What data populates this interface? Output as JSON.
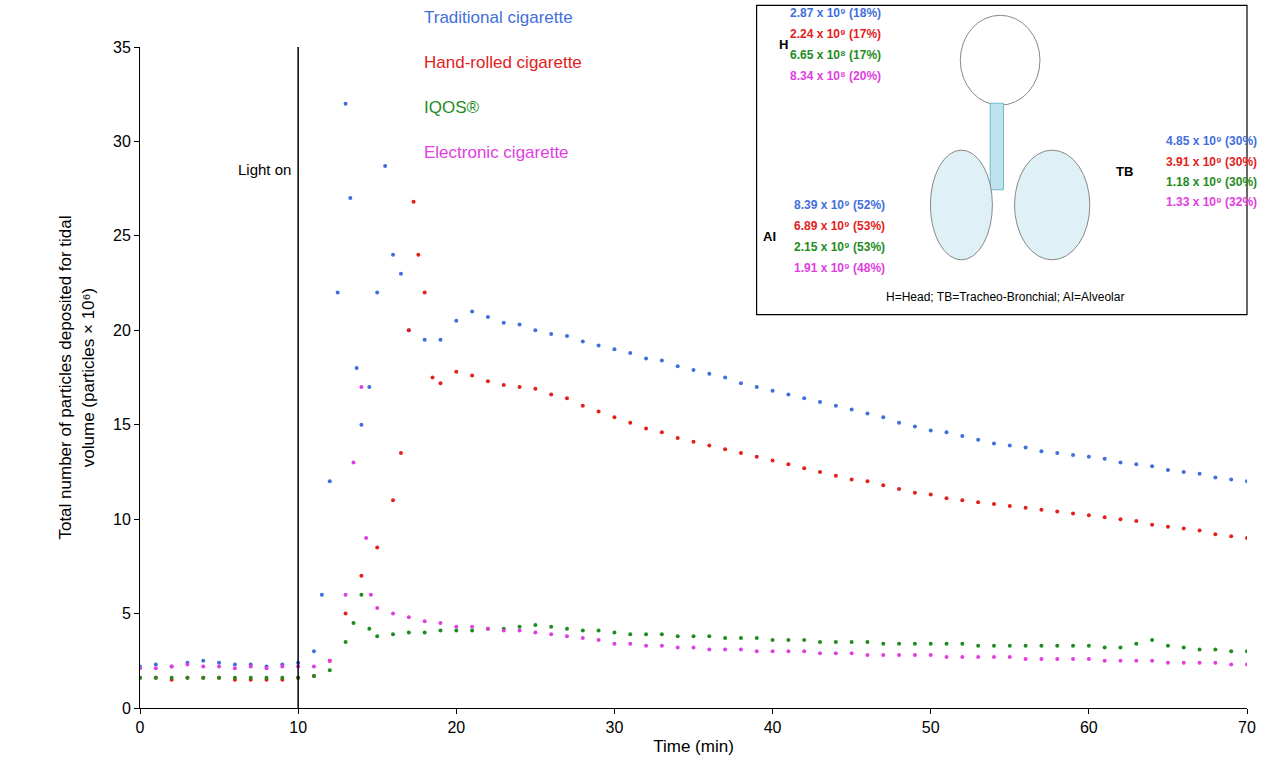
{
  "chart_data": {
    "type": "scatter",
    "x_label": "Time (min)",
    "y_label": "Total number of particles deposited for tidal volume (particles × 10⁶)",
    "xlim": [
      0,
      70
    ],
    "xticks": [
      0,
      10,
      20,
      30,
      40,
      50,
      60,
      70
    ],
    "ylim": [
      0,
      35
    ],
    "yticks": [
      0,
      5,
      10,
      15,
      20,
      25,
      30,
      35
    ],
    "grid": false,
    "legend": "top",
    "marker": "circle",
    "event": {
      "x": 10,
      "label": "Light on"
    },
    "series": [
      {
        "name": "Traditional cigarette",
        "color": "#3f6fdc",
        "x": [
          0,
          1,
          2,
          3,
          4,
          5,
          6,
          7,
          8,
          9,
          10,
          11,
          11.5,
          12,
          12.5,
          13,
          13.3,
          13.7,
          14,
          14.5,
          15,
          15.5,
          16,
          16.5,
          17,
          18,
          19,
          20,
          21,
          22,
          23,
          24,
          25,
          26,
          27,
          28,
          29,
          30,
          31,
          32,
          33,
          34,
          35,
          36,
          37,
          38,
          39,
          40,
          41,
          42,
          43,
          44,
          45,
          46,
          47,
          48,
          49,
          50,
          51,
          52,
          53,
          54,
          55,
          56,
          57,
          58,
          59,
          60,
          61,
          62,
          63,
          64,
          65,
          66,
          67,
          68,
          69,
          70
        ],
        "values": [
          2.2,
          2.3,
          2.2,
          2.4,
          2.5,
          2.4,
          2.3,
          2.3,
          2.2,
          2.3,
          2.4,
          3.0,
          6,
          12,
          22,
          32,
          27,
          18,
          15,
          17,
          22,
          28.7,
          24,
          23,
          20,
          19.5,
          19.5,
          20.5,
          21,
          20.7,
          20.4,
          20.3,
          20.0,
          19.8,
          19.7,
          19.4,
          19.2,
          19.0,
          18.8,
          18.5,
          18.4,
          18.1,
          17.9,
          17.7,
          17.5,
          17.2,
          17.0,
          16.8,
          16.6,
          16.4,
          16.2,
          16.0,
          15.8,
          15.6,
          15.4,
          15.1,
          14.9,
          14.7,
          14.6,
          14.4,
          14.2,
          14.0,
          13.9,
          13.8,
          13.6,
          13.5,
          13.4,
          13.3,
          13.2,
          13.0,
          12.9,
          12.8,
          12.6,
          12.5,
          12.4,
          12.2,
          12.1,
          12.0
        ]
      },
      {
        "name": "Hand-rolled cigarette",
        "color": "#e3211c",
        "x": [
          0,
          1,
          2,
          3,
          4,
          5,
          6,
          7,
          8,
          9,
          10,
          11,
          12,
          13,
          14,
          15,
          16,
          16.5,
          17,
          17.3,
          17.6,
          18,
          18.5,
          19,
          20,
          21,
          22,
          23,
          24,
          25,
          26,
          27,
          28,
          29,
          30,
          31,
          32,
          33,
          34,
          35,
          36,
          37,
          38,
          39,
          40,
          41,
          42,
          43,
          44,
          45,
          46,
          47,
          48,
          49,
          50,
          51,
          52,
          53,
          54,
          55,
          56,
          57,
          58,
          59,
          60,
          61,
          62,
          63,
          64,
          65,
          66,
          67,
          68,
          69,
          70
        ],
        "values": [
          1.6,
          1.6,
          1.5,
          1.6,
          1.6,
          1.6,
          1.5,
          1.5,
          1.5,
          1.5,
          1.6,
          1.7,
          2.5,
          5,
          7,
          8.5,
          11,
          13.5,
          20,
          26.8,
          24,
          22,
          17.5,
          17.2,
          17.8,
          17.6,
          17.3,
          17.1,
          17.0,
          16.9,
          16.6,
          16.4,
          16.0,
          15.7,
          15.4,
          15.1,
          14.8,
          14.6,
          14.3,
          14.1,
          13.9,
          13.7,
          13.5,
          13.3,
          13.1,
          12.9,
          12.7,
          12.5,
          12.3,
          12.1,
          12.0,
          11.8,
          11.6,
          11.4,
          11.3,
          11.1,
          11.0,
          10.9,
          10.8,
          10.7,
          10.6,
          10.5,
          10.4,
          10.3,
          10.2,
          10.1,
          10.0,
          9.9,
          9.7,
          9.6,
          9.5,
          9.4,
          9.2,
          9.1,
          9.0
        ]
      },
      {
        "name": "IQOS®",
        "color": "#1e8c1e",
        "x": [
          0,
          1,
          2,
          3,
          4,
          5,
          6,
          7,
          8,
          9,
          10,
          11,
          12,
          13,
          13.5,
          14,
          14.5,
          15,
          16,
          17,
          18,
          19,
          20,
          21,
          22,
          23,
          24,
          25,
          26,
          27,
          28,
          29,
          30,
          31,
          32,
          33,
          34,
          35,
          36,
          37,
          38,
          39,
          40,
          41,
          42,
          43,
          44,
          45,
          46,
          47,
          48,
          49,
          50,
          51,
          52,
          53,
          54,
          55,
          56,
          57,
          58,
          59,
          60,
          61,
          62,
          63,
          64,
          65,
          66,
          67,
          68,
          69,
          70
        ],
        "values": [
          1.6,
          1.6,
          1.6,
          1.6,
          1.6,
          1.6,
          1.6,
          1.6,
          1.6,
          1.6,
          1.6,
          1.7,
          2.0,
          3.5,
          4.5,
          6,
          4.2,
          3.8,
          3.9,
          4.0,
          4.0,
          4.1,
          4.1,
          4.1,
          4.2,
          4.2,
          4.3,
          4.4,
          4.3,
          4.2,
          4.1,
          4.1,
          4.0,
          3.9,
          3.9,
          3.9,
          3.8,
          3.8,
          3.8,
          3.7,
          3.7,
          3.7,
          3.6,
          3.6,
          3.6,
          3.5,
          3.5,
          3.5,
          3.5,
          3.4,
          3.4,
          3.4,
          3.4,
          3.4,
          3.4,
          3.3,
          3.3,
          3.3,
          3.3,
          3.3,
          3.3,
          3.3,
          3.3,
          3.2,
          3.2,
          3.4,
          3.6,
          3.3,
          3.2,
          3.1,
          3.1,
          3.0,
          3.0
        ]
      },
      {
        "name": "Electronic cigarette",
        "color": "#e03ee0",
        "x": [
          0,
          1,
          2,
          3,
          4,
          5,
          6,
          7,
          8,
          9,
          10,
          11,
          12,
          13,
          13.5,
          14,
          14.3,
          14.6,
          15,
          16,
          17,
          18,
          19,
          20,
          21,
          22,
          23,
          24,
          25,
          26,
          27,
          28,
          29,
          30,
          31,
          32,
          33,
          34,
          35,
          36,
          37,
          38,
          39,
          40,
          41,
          42,
          43,
          44,
          45,
          46,
          47,
          48,
          49,
          50,
          51,
          52,
          53,
          54,
          55,
          56,
          57,
          58,
          59,
          60,
          61,
          62,
          63,
          64,
          65,
          66,
          67,
          68,
          69,
          70
        ],
        "values": [
          2.1,
          2.1,
          2.2,
          2.3,
          2.2,
          2.2,
          2.1,
          2.2,
          2.1,
          2.2,
          2.2,
          2.2,
          2.5,
          6,
          13,
          17,
          9,
          6,
          5.3,
          5.0,
          4.8,
          4.6,
          4.5,
          4.3,
          4.3,
          4.2,
          4.1,
          4.1,
          4.0,
          3.9,
          3.8,
          3.7,
          3.6,
          3.4,
          3.4,
          3.3,
          3.3,
          3.2,
          3.2,
          3.1,
          3.1,
          3.1,
          3.0,
          3.0,
          3.0,
          3.0,
          2.9,
          2.9,
          2.9,
          2.8,
          2.8,
          2.8,
          2.8,
          2.8,
          2.7,
          2.7,
          2.7,
          2.7,
          2.7,
          2.6,
          2.6,
          2.6,
          2.6,
          2.6,
          2.5,
          2.5,
          2.5,
          2.5,
          2.4,
          2.4,
          2.4,
          2.4,
          2.3,
          2.3
        ]
      }
    ],
    "inset": {
      "regions": [
        {
          "label": "H",
          "values": [
            "2.87 x 10⁹ (18%)",
            "2.24 x 10⁹ (17%)",
            "6.65 x 10⁸ (17%)",
            "8.34 x 10⁸ (20%)"
          ]
        },
        {
          "label": "TB",
          "values": [
            "4.85 x 10⁹ (30%)",
            "3.91 x 10⁹ (30%)",
            "1.18 x 10⁹ (30%)",
            "1.33 x 10⁹ (32%)"
          ]
        },
        {
          "label": "AI",
          "values": [
            "8.39 x 10⁹ (52%)",
            "6.89 x 10⁹ (53%)",
            "2.15 x 10⁹ (53%)",
            "1.91 x 10⁹ (48%)"
          ]
        }
      ],
      "note": "H=Head; TB=Tracheo-Bronchial; AI=Alveolar"
    }
  }
}
